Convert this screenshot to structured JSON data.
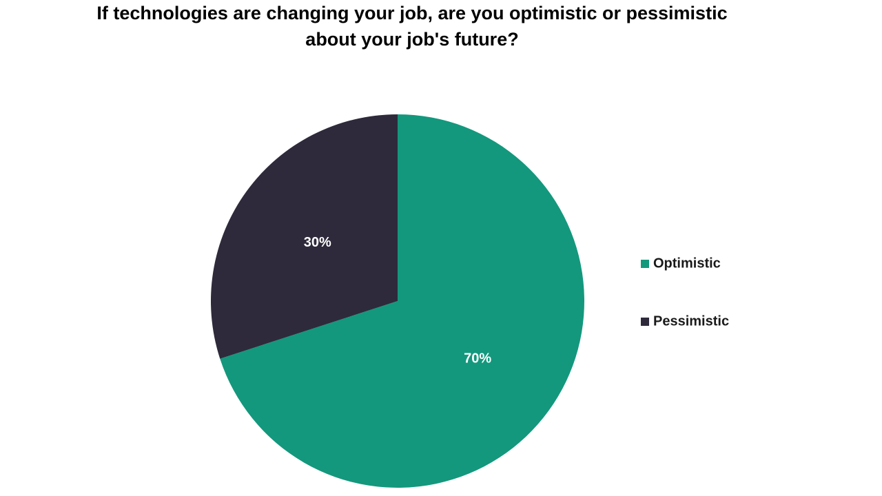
{
  "chart_data": {
    "type": "pie",
    "title": "If technologies are changing your job, are you optimistic or pessimistic about your job's future?",
    "categories": [
      "Optimistic",
      "Pessimistic"
    ],
    "values": [
      70,
      30
    ],
    "value_labels": [
      "70%",
      "30%"
    ],
    "colors": [
      "#13987d",
      "#2e2a3b"
    ],
    "legend": "right"
  }
}
